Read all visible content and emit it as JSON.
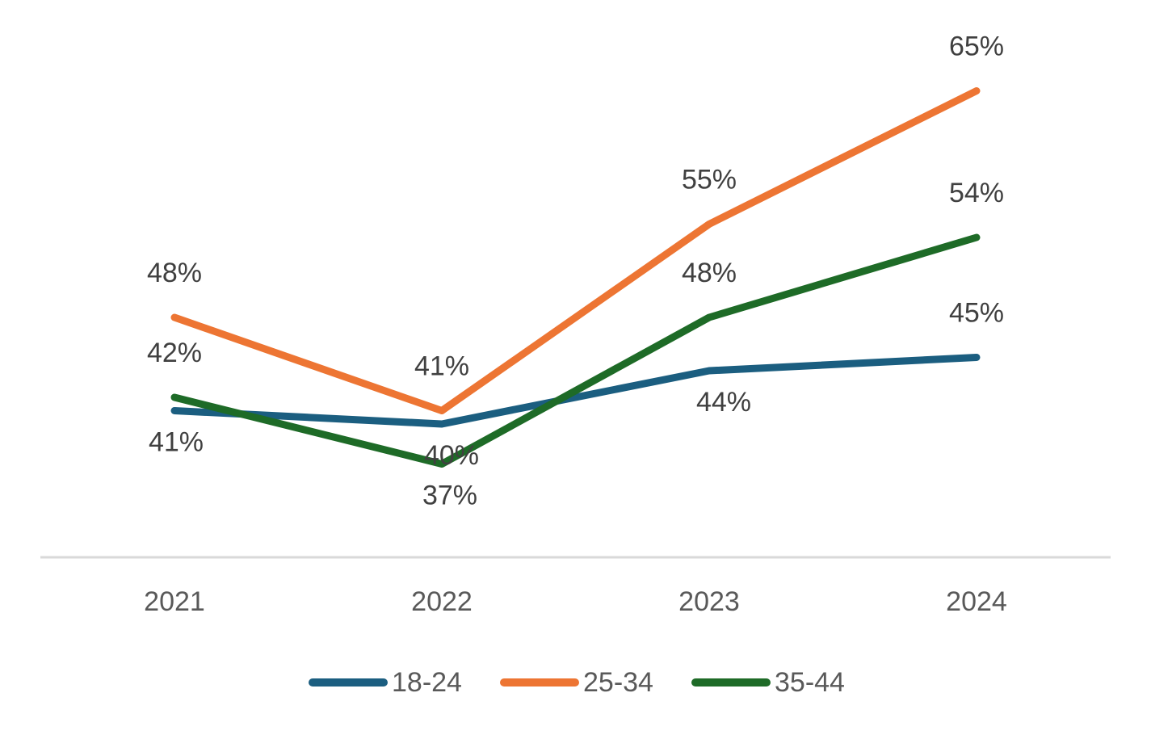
{
  "chart_data": {
    "type": "line",
    "categories": [
      "2021",
      "2022",
      "2023",
      "2024"
    ],
    "series": [
      {
        "name": "18-24",
        "color": "#1b5e80",
        "values": [
          41,
          40,
          44,
          45
        ],
        "labels": [
          "41%",
          "40%",
          "44%",
          "45%"
        ]
      },
      {
        "name": "25-34",
        "color": "#ed7533",
        "values": [
          48,
          41,
          55,
          65
        ],
        "labels": [
          "48%",
          "41%",
          "55%",
          "65%"
        ]
      },
      {
        "name": "35-44",
        "color": "#1e6b27",
        "values": [
          42,
          37,
          48,
          54
        ],
        "labels": [
          "42%",
          "37%",
          "48%",
          "54%"
        ]
      }
    ],
    "ylim": [
      30,
      70
    ],
    "grid": false,
    "legend_position": "bottom"
  }
}
